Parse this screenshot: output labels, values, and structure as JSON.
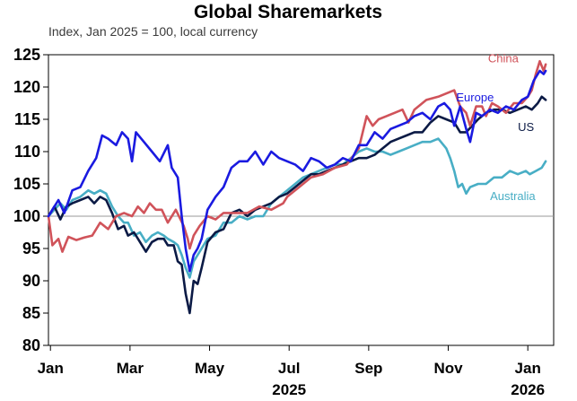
{
  "chart_data": {
    "type": "line",
    "title": "Global Sharemarkets",
    "subtitle": "Index, Jan 2025 = 100, local currency",
    "ylim": [
      80,
      125
    ],
    "yticks": [
      80,
      85,
      90,
      95,
      100,
      105,
      110,
      115,
      120,
      125
    ],
    "ytick_labels": [
      "80",
      "85",
      "90",
      "95",
      "100",
      "105",
      "110",
      "115",
      "120",
      "125"
    ],
    "xlim": [
      0,
      12.7
    ],
    "xticks": [
      {
        "x": 0.05,
        "label": "Jan",
        "year": ""
      },
      {
        "x": 2.05,
        "label": "Mar",
        "year": ""
      },
      {
        "x": 4.05,
        "label": "May",
        "year": ""
      },
      {
        "x": 6.05,
        "label": "Jul",
        "year": "2025"
      },
      {
        "x": 8.05,
        "label": "Sep",
        "year": ""
      },
      {
        "x": 10.05,
        "label": "Nov",
        "year": ""
      },
      {
        "x": 12.05,
        "label": "Jan",
        "year": "2026"
      }
    ],
    "reference_line": 100,
    "grid": false,
    "legend": "inline labels",
    "series": [
      {
        "name": "China",
        "color": "#d0535a",
        "label_pos": [
          11.05,
          123.8
        ],
        "points": [
          [
            0,
            100
          ],
          [
            0.1,
            95.5
          ],
          [
            0.25,
            96.5
          ],
          [
            0.35,
            94.5
          ],
          [
            0.5,
            96.8
          ],
          [
            0.7,
            96.3
          ],
          [
            0.9,
            96.7
          ],
          [
            1.1,
            97
          ],
          [
            1.3,
            99
          ],
          [
            1.5,
            98
          ],
          [
            1.7,
            100
          ],
          [
            1.9,
            100.5
          ],
          [
            2.1,
            100
          ],
          [
            2.25,
            101.5
          ],
          [
            2.4,
            100.5
          ],
          [
            2.55,
            102
          ],
          [
            2.7,
            101
          ],
          [
            2.85,
            101
          ],
          [
            3.0,
            99
          ],
          [
            3.2,
            101
          ],
          [
            3.4,
            98.5
          ],
          [
            3.5,
            96.5
          ],
          [
            3.55,
            95
          ],
          [
            3.65,
            97
          ],
          [
            3.8,
            98.5
          ],
          [
            4.0,
            100
          ],
          [
            4.2,
            99.5
          ],
          [
            4.4,
            100.5
          ],
          [
            4.7,
            100.5
          ],
          [
            5.0,
            100.5
          ],
          [
            5.3,
            101.5
          ],
          [
            5.6,
            101
          ],
          [
            5.9,
            102
          ],
          [
            6.0,
            103
          ],
          [
            6.3,
            104.5
          ],
          [
            6.6,
            106
          ],
          [
            6.9,
            106.5
          ],
          [
            7.2,
            107.5
          ],
          [
            7.5,
            108
          ],
          [
            7.8,
            110.5
          ],
          [
            7.9,
            113
          ],
          [
            8.0,
            115.5
          ],
          [
            8.15,
            114
          ],
          [
            8.3,
            115
          ],
          [
            8.5,
            115.5
          ],
          [
            8.7,
            116
          ],
          [
            8.9,
            116.5
          ],
          [
            9.05,
            114.5
          ],
          [
            9.2,
            116.5
          ],
          [
            9.5,
            118
          ],
          [
            9.8,
            118.5
          ],
          [
            10.0,
            119
          ],
          [
            10.2,
            119.5
          ],
          [
            10.35,
            117
          ],
          [
            10.5,
            116
          ],
          [
            10.6,
            114
          ],
          [
            10.75,
            117
          ],
          [
            10.9,
            117
          ],
          [
            11.0,
            115.5
          ],
          [
            11.15,
            117.5
          ],
          [
            11.3,
            117
          ],
          [
            11.5,
            116
          ],
          [
            11.7,
            117.5
          ],
          [
            11.9,
            117.5
          ],
          [
            12.05,
            118.5
          ],
          [
            12.15,
            119.5
          ],
          [
            12.25,
            122
          ],
          [
            12.35,
            124
          ],
          [
            12.45,
            122.5
          ],
          [
            12.5,
            123.5
          ]
        ]
      },
      {
        "name": "Europe",
        "color": "#1a1ae0",
        "label_pos": [
          10.25,
          117.8
        ],
        "points": [
          [
            0,
            100
          ],
          [
            0.1,
            101
          ],
          [
            0.25,
            102.5
          ],
          [
            0.4,
            100.5
          ],
          [
            0.6,
            104
          ],
          [
            0.8,
            104.5
          ],
          [
            1.0,
            107
          ],
          [
            1.2,
            109
          ],
          [
            1.35,
            112.5
          ],
          [
            1.5,
            112
          ],
          [
            1.7,
            111
          ],
          [
            1.85,
            113
          ],
          [
            2.0,
            112
          ],
          [
            2.1,
            108.5
          ],
          [
            2.2,
            113
          ],
          [
            2.4,
            111.5
          ],
          [
            2.6,
            110
          ],
          [
            2.8,
            108.5
          ],
          [
            3.0,
            111
          ],
          [
            3.1,
            107.5
          ],
          [
            3.25,
            106
          ],
          [
            3.35,
            100
          ],
          [
            3.45,
            95
          ],
          [
            3.55,
            91.5
          ],
          [
            3.65,
            94
          ],
          [
            3.75,
            95
          ],
          [
            3.85,
            96.5
          ],
          [
            4.0,
            101
          ],
          [
            4.2,
            103
          ],
          [
            4.4,
            104.5
          ],
          [
            4.6,
            107.5
          ],
          [
            4.8,
            108.5
          ],
          [
            5.0,
            108.5
          ],
          [
            5.2,
            110
          ],
          [
            5.4,
            108
          ],
          [
            5.6,
            110
          ],
          [
            5.8,
            109
          ],
          [
            6.0,
            108.5
          ],
          [
            6.2,
            108
          ],
          [
            6.4,
            107
          ],
          [
            6.6,
            109
          ],
          [
            6.8,
            108.5
          ],
          [
            7.0,
            107.5
          ],
          [
            7.2,
            108
          ],
          [
            7.4,
            109
          ],
          [
            7.6,
            108.5
          ],
          [
            7.8,
            111
          ],
          [
            8.0,
            111
          ],
          [
            8.2,
            113
          ],
          [
            8.4,
            112
          ],
          [
            8.6,
            113.5
          ],
          [
            8.8,
            114
          ],
          [
            9.0,
            114.5
          ],
          [
            9.2,
            115.5
          ],
          [
            9.4,
            116
          ],
          [
            9.6,
            115
          ],
          [
            9.8,
            117
          ],
          [
            9.95,
            117.5
          ],
          [
            10.1,
            116.5
          ],
          [
            10.2,
            114
          ],
          [
            10.35,
            117
          ],
          [
            10.5,
            113.5
          ],
          [
            10.6,
            111.5
          ],
          [
            10.75,
            116
          ],
          [
            10.9,
            115.5
          ],
          [
            11.1,
            116.5
          ],
          [
            11.3,
            116
          ],
          [
            11.5,
            117
          ],
          [
            11.7,
            116.5
          ],
          [
            11.9,
            118
          ],
          [
            12.05,
            118.5
          ],
          [
            12.2,
            121
          ],
          [
            12.35,
            122.5
          ],
          [
            12.45,
            122
          ],
          [
            12.5,
            122.5
          ]
        ]
      },
      {
        "name": "US",
        "color": "#0b1a45",
        "label_pos": [
          11.8,
          113.2
        ],
        "points": [
          [
            0,
            100
          ],
          [
            0.15,
            101.5
          ],
          [
            0.3,
            99.5
          ],
          [
            0.45,
            101.5
          ],
          [
            0.6,
            102
          ],
          [
            0.8,
            102.5
          ],
          [
            1.0,
            103
          ],
          [
            1.15,
            102
          ],
          [
            1.3,
            103
          ],
          [
            1.45,
            102.5
          ],
          [
            1.6,
            100.5
          ],
          [
            1.75,
            98
          ],
          [
            1.9,
            98.5
          ],
          [
            2.0,
            97
          ],
          [
            2.15,
            97.5
          ],
          [
            2.3,
            96
          ],
          [
            2.45,
            94.5
          ],
          [
            2.6,
            96
          ],
          [
            2.75,
            96.5
          ],
          [
            2.9,
            96.5
          ],
          [
            3.0,
            95.5
          ],
          [
            3.15,
            95.5
          ],
          [
            3.25,
            93
          ],
          [
            3.35,
            92.5
          ],
          [
            3.45,
            88
          ],
          [
            3.55,
            85
          ],
          [
            3.65,
            90
          ],
          [
            3.75,
            89.5
          ],
          [
            3.85,
            92
          ],
          [
            4.0,
            96
          ],
          [
            4.2,
            97.5
          ],
          [
            4.4,
            98
          ],
          [
            4.6,
            100.5
          ],
          [
            4.8,
            101
          ],
          [
            5.0,
            100
          ],
          [
            5.2,
            101
          ],
          [
            5.4,
            101.5
          ],
          [
            5.6,
            102
          ],
          [
            5.8,
            103
          ],
          [
            6.0,
            103.5
          ],
          [
            6.2,
            104.5
          ],
          [
            6.4,
            105.5
          ],
          [
            6.6,
            106.5
          ],
          [
            6.8,
            106.5
          ],
          [
            7.0,
            107
          ],
          [
            7.2,
            107.5
          ],
          [
            7.4,
            108
          ],
          [
            7.6,
            108.5
          ],
          [
            7.8,
            109
          ],
          [
            8.0,
            109
          ],
          [
            8.2,
            109.5
          ],
          [
            8.4,
            110.5
          ],
          [
            8.6,
            111.5
          ],
          [
            8.8,
            112
          ],
          [
            9.0,
            112.5
          ],
          [
            9.2,
            113
          ],
          [
            9.4,
            113
          ],
          [
            9.6,
            114.5
          ],
          [
            9.8,
            115.5
          ],
          [
            10.0,
            115
          ],
          [
            10.2,
            114.5
          ],
          [
            10.35,
            113
          ],
          [
            10.5,
            113
          ],
          [
            10.65,
            114
          ],
          [
            10.8,
            115
          ],
          [
            11.0,
            116
          ],
          [
            11.2,
            116.5
          ],
          [
            11.4,
            116.5
          ],
          [
            11.6,
            116
          ],
          [
            11.8,
            116.5
          ],
          [
            12.0,
            117
          ],
          [
            12.15,
            116.5
          ],
          [
            12.3,
            117.5
          ],
          [
            12.4,
            118.5
          ],
          [
            12.5,
            118
          ]
        ]
      },
      {
        "name": "Australia",
        "color": "#48aec5",
        "label_pos": [
          11.1,
          102.5
        ],
        "points": [
          [
            0,
            100
          ],
          [
            0.15,
            101
          ],
          [
            0.3,
            102
          ],
          [
            0.45,
            101
          ],
          [
            0.6,
            102.5
          ],
          [
            0.8,
            103
          ],
          [
            1.0,
            104
          ],
          [
            1.15,
            103.5
          ],
          [
            1.3,
            104
          ],
          [
            1.45,
            103.5
          ],
          [
            1.6,
            101.5
          ],
          [
            1.75,
            100
          ],
          [
            1.9,
            99
          ],
          [
            2.0,
            99
          ],
          [
            2.15,
            97
          ],
          [
            2.3,
            97.5
          ],
          [
            2.45,
            96
          ],
          [
            2.6,
            97
          ],
          [
            2.75,
            97.5
          ],
          [
            2.9,
            97
          ],
          [
            3.0,
            96.5
          ],
          [
            3.15,
            96
          ],
          [
            3.25,
            95.5
          ],
          [
            3.35,
            94
          ],
          [
            3.45,
            92
          ],
          [
            3.55,
            90.5
          ],
          [
            3.65,
            93
          ],
          [
            3.8,
            94.5
          ],
          [
            4.0,
            96.5
          ],
          [
            4.2,
            97
          ],
          [
            4.4,
            99
          ],
          [
            4.6,
            99
          ],
          [
            4.8,
            100
          ],
          [
            5.0,
            99.5
          ],
          [
            5.2,
            100
          ],
          [
            5.4,
            100
          ],
          [
            5.6,
            102
          ],
          [
            5.8,
            103
          ],
          [
            6.0,
            104
          ],
          [
            6.2,
            105
          ],
          [
            6.4,
            106
          ],
          [
            6.6,
            106.5
          ],
          [
            6.8,
            107
          ],
          [
            7.0,
            107.5
          ],
          [
            7.2,
            108
          ],
          [
            7.4,
            108
          ],
          [
            7.6,
            109
          ],
          [
            7.8,
            110
          ],
          [
            8.0,
            110.5
          ],
          [
            8.2,
            110
          ],
          [
            8.4,
            110
          ],
          [
            8.6,
            109.5
          ],
          [
            8.8,
            110
          ],
          [
            9.0,
            110.5
          ],
          [
            9.2,
            111
          ],
          [
            9.4,
            111.5
          ],
          [
            9.6,
            111.5
          ],
          [
            9.8,
            112
          ],
          [
            10.0,
            110.5
          ],
          [
            10.1,
            109
          ],
          [
            10.2,
            107
          ],
          [
            10.3,
            104.5
          ],
          [
            10.4,
            105
          ],
          [
            10.5,
            103.5
          ],
          [
            10.6,
            104.5
          ],
          [
            10.8,
            105
          ],
          [
            11.0,
            105
          ],
          [
            11.2,
            106
          ],
          [
            11.4,
            106
          ],
          [
            11.6,
            107
          ],
          [
            11.8,
            106.5
          ],
          [
            12.0,
            107
          ],
          [
            12.1,
            106.5
          ],
          [
            12.25,
            107
          ],
          [
            12.4,
            107.5
          ],
          [
            12.5,
            108.5
          ]
        ]
      }
    ]
  }
}
